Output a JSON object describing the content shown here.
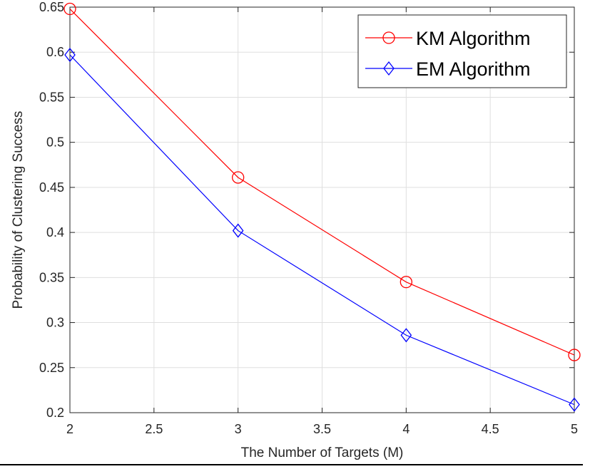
{
  "chart_data": {
    "type": "line",
    "title": "",
    "xlabel": "The Number of Targets (M)",
    "ylabel": "Probability of Clustering Success",
    "xlim": [
      2,
      5
    ],
    "ylim": [
      0.2,
      0.65
    ],
    "x_ticks": [
      2,
      2.5,
      3,
      3.5,
      4,
      4.5,
      5
    ],
    "x_tick_labels": [
      "2",
      "2.5",
      "3",
      "3.5",
      "4",
      "4.5",
      "5"
    ],
    "y_ticks": [
      0.2,
      0.25,
      0.3,
      0.35,
      0.4,
      0.45,
      0.5,
      0.55,
      0.6,
      0.65
    ],
    "y_tick_labels": [
      "0.2",
      "0.25",
      "0.3",
      "0.35",
      "0.4",
      "0.45",
      "0.5",
      "0.55",
      "0.6",
      "0.65"
    ],
    "grid": true,
    "legend_position": "top-right",
    "x": [
      2,
      3,
      4,
      5
    ],
    "series": [
      {
        "name": "KM Algorithm",
        "values": [
          0.648,
          0.461,
          0.345,
          0.264
        ],
        "color": "#ff0000",
        "marker": "circle"
      },
      {
        "name": "EM Algorithm",
        "values": [
          0.597,
          0.402,
          0.286,
          0.209
        ],
        "color": "#0000ff",
        "marker": "diamond"
      }
    ]
  }
}
